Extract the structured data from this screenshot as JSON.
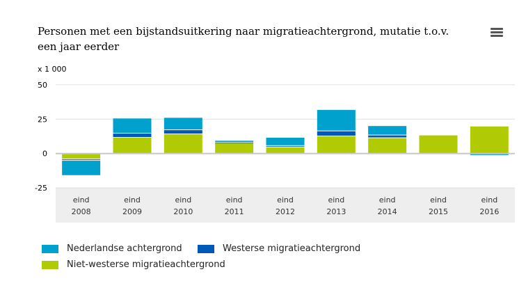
{
  "chart_data": {
    "type": "bar",
    "stacked": true,
    "title": "Personen met een bijstandsuitkering naar migratieachtergrond, mutatie t.o.v. een jaar eerder",
    "unit_label": "x 1 000",
    "categories": [
      [
        "eind",
        "2008"
      ],
      [
        "eind",
        "2009"
      ],
      [
        "eind",
        "2010"
      ],
      [
        "eind",
        "2011"
      ],
      [
        "eind",
        "2012"
      ],
      [
        "eind",
        "2013"
      ],
      [
        "eind",
        "2014"
      ],
      [
        "eind",
        "2015"
      ],
      [
        "eind",
        "2016"
      ]
    ],
    "ylim": [
      -25,
      50
    ],
    "yticks": [
      -25,
      0,
      25,
      50
    ],
    "grid": true,
    "legend_position": "bottom",
    "series": [
      {
        "name": "Niet-westerse migratieachtergrond",
        "color": "#b0cb03",
        "values": [
          -4,
          12,
          14.5,
          8,
          5,
          13,
          11.7,
          13.7,
          20.2
        ]
      },
      {
        "name": "Westerse migratieachtergrond",
        "color": "#0058b8",
        "values": [
          -1,
          3,
          3,
          0.3,
          1,
          3.7,
          2,
          0,
          -0.5
        ]
      },
      {
        "name": "Nederlandse achtergrond",
        "color": "#00a1cd",
        "values": [
          -11,
          11,
          9,
          1.5,
          6,
          15.5,
          6.8,
          0,
          -1
        ]
      }
    ]
  },
  "legend_order": [
    2,
    1,
    0
  ]
}
